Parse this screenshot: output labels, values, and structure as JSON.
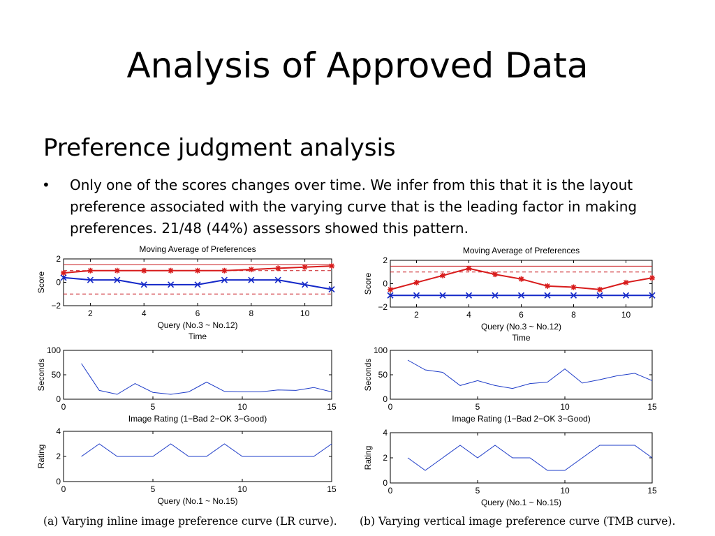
{
  "slide": {
    "title": "Analysis of Approved Data",
    "subtitle": "Preference judgment analysis",
    "bullet_symbol": "•",
    "bullet_text": "Only one of the scores changes over time. We infer from this that it is the layout preference associated with the varying curve that is the leading factor in making preferences. 21/48 (44%) assessors showed this pattern."
  },
  "chart_data": [
    {
      "panel": "a-top",
      "type": "line",
      "title": "Moving Average of Preferences",
      "xlabel": "Query (No.3 ~ No.12)",
      "xlabel2": "Time",
      "ylabel": "Score",
      "xlim": [
        1,
        11
      ],
      "ylim": [
        -2,
        2
      ],
      "xticks": [
        2,
        4,
        6,
        8,
        10
      ],
      "yticks": [
        -2,
        0,
        2
      ],
      "ytick_labels": [
        "−2",
        "0",
        "2"
      ],
      "hlines": [
        {
          "y": 1.5,
          "color": "#c8161c",
          "style": "solid"
        },
        {
          "y": 1.0,
          "color": "#c8161c",
          "style": "dashed"
        },
        {
          "y": -1.0,
          "color": "#c8161c",
          "style": "dashed"
        }
      ],
      "series": [
        {
          "color": "#d81c1c",
          "marker": "star",
          "x": [
            1,
            2,
            3,
            4,
            5,
            6,
            7,
            8,
            9,
            10,
            11
          ],
          "values": [
            0.8,
            1.0,
            1.0,
            1.0,
            1.0,
            1.0,
            1.0,
            1.1,
            1.2,
            1.3,
            1.4
          ]
        },
        {
          "color": "#1428c8",
          "marker": "x",
          "x": [
            1,
            2,
            3,
            4,
            5,
            6,
            7,
            8,
            9,
            10,
            11
          ],
          "values": [
            0.4,
            0.2,
            0.2,
            -0.2,
            -0.2,
            -0.2,
            0.2,
            0.2,
            0.2,
            -0.2,
            -0.6
          ]
        }
      ]
    },
    {
      "panel": "a-mid",
      "type": "line",
      "title": "",
      "xlabel": "Image Rating (1−Bad 2−OK 3−Good)",
      "ylabel": "Seconds",
      "xlim": [
        0,
        15
      ],
      "ylim": [
        0,
        100
      ],
      "xticks": [
        0,
        5,
        10,
        15
      ],
      "yticks": [
        0,
        50,
        100
      ],
      "series": [
        {
          "color": "#1e3cc8",
          "x": [
            1,
            2,
            3,
            4,
            5,
            6,
            7,
            8,
            9,
            10,
            11,
            12,
            13,
            14,
            15
          ],
          "values": [
            73,
            18,
            10,
            32,
            14,
            10,
            15,
            35,
            16,
            15,
            15,
            19,
            18,
            24,
            15
          ]
        }
      ]
    },
    {
      "panel": "a-bot",
      "type": "line",
      "title": "",
      "xlabel": "Query (No.1 ~ No.15)",
      "ylabel": "Rating",
      "xlim": [
        0,
        15
      ],
      "ylim": [
        0,
        4
      ],
      "xticks": [
        0,
        5,
        10,
        15
      ],
      "yticks": [
        0,
        2,
        4
      ],
      "series": [
        {
          "color": "#1e3cc8",
          "x": [
            1,
            2,
            3,
            4,
            5,
            6,
            7,
            8,
            9,
            10,
            11,
            12,
            13,
            14,
            15
          ],
          "values": [
            2,
            3,
            2,
            2,
            2,
            3,
            2,
            2,
            3,
            2,
            2,
            2,
            2,
            2,
            3
          ]
        }
      ]
    },
    {
      "panel": "b-top",
      "type": "line",
      "title": "Moving Average of Preferences",
      "xlabel": "Query (No.3 ~ No.12)",
      "xlabel2": "Time",
      "ylabel": "Score",
      "xlim": [
        1,
        11
      ],
      "ylim": [
        -2,
        2
      ],
      "xticks": [
        2,
        4,
        6,
        8,
        10
      ],
      "yticks": [
        -2,
        0,
        2
      ],
      "ytick_labels": [
        "−2",
        "0",
        "2"
      ],
      "hlines": [
        {
          "y": 1.5,
          "color": "#c8161c",
          "style": "solid"
        },
        {
          "y": 1.0,
          "color": "#c8161c",
          "style": "dashed"
        },
        {
          "y": -1.0,
          "color": "#c8161c",
          "style": "dashed"
        }
      ],
      "series": [
        {
          "color": "#d81c1c",
          "marker": "star",
          "x": [
            1,
            2,
            3,
            4,
            5,
            6,
            7,
            8,
            9,
            10,
            11
          ],
          "values": [
            -0.5,
            0.1,
            0.7,
            1.3,
            0.8,
            0.4,
            -0.2,
            -0.3,
            -0.5,
            0.1,
            0.5
          ]
        },
        {
          "color": "#1428c8",
          "marker": "x",
          "x": [
            1,
            2,
            3,
            4,
            5,
            6,
            7,
            8,
            9,
            10,
            11
          ],
          "values": [
            -1.0,
            -1.0,
            -1.0,
            -1.0,
            -1.0,
            -1.0,
            -1.0,
            -1.0,
            -1.0,
            -1.0,
            -1.0
          ]
        }
      ]
    },
    {
      "panel": "b-mid",
      "type": "line",
      "title": "",
      "xlabel": "Image Rating (1−Bad 2−OK 3−Good)",
      "ylabel": "Seconds",
      "xlim": [
        0,
        15
      ],
      "ylim": [
        0,
        100
      ],
      "xticks": [
        0,
        5,
        10,
        15
      ],
      "yticks": [
        0,
        50,
        100
      ],
      "series": [
        {
          "color": "#1e3cc8",
          "x": [
            1,
            2,
            3,
            4,
            5,
            6,
            7,
            8,
            9,
            10,
            11,
            12,
            13,
            14,
            15
          ],
          "values": [
            80,
            60,
            55,
            28,
            38,
            28,
            22,
            32,
            35,
            62,
            33,
            40,
            48,
            53,
            38
          ]
        }
      ]
    },
    {
      "panel": "b-bot",
      "type": "line",
      "title": "",
      "xlabel": "Query (No.1 ~ No.15)",
      "ylabel": "Rating",
      "xlim": [
        0,
        15
      ],
      "ylim": [
        0,
        4
      ],
      "xticks": [
        0,
        5,
        10,
        15
      ],
      "yticks": [
        0,
        2,
        4
      ],
      "series": [
        {
          "color": "#1e3cc8",
          "x": [
            1,
            2,
            3,
            4,
            5,
            6,
            7,
            8,
            9,
            10,
            11,
            12,
            13,
            14,
            15
          ],
          "values": [
            2,
            1,
            2,
            3,
            2,
            3,
            2,
            2,
            1,
            1,
            2,
            3,
            3,
            3,
            2
          ]
        }
      ]
    }
  ],
  "captions": {
    "a": "(a) Varying inline image preference curve (LR curve).",
    "b": "(b) Varying vertical image preference curve (TMB curve)."
  }
}
